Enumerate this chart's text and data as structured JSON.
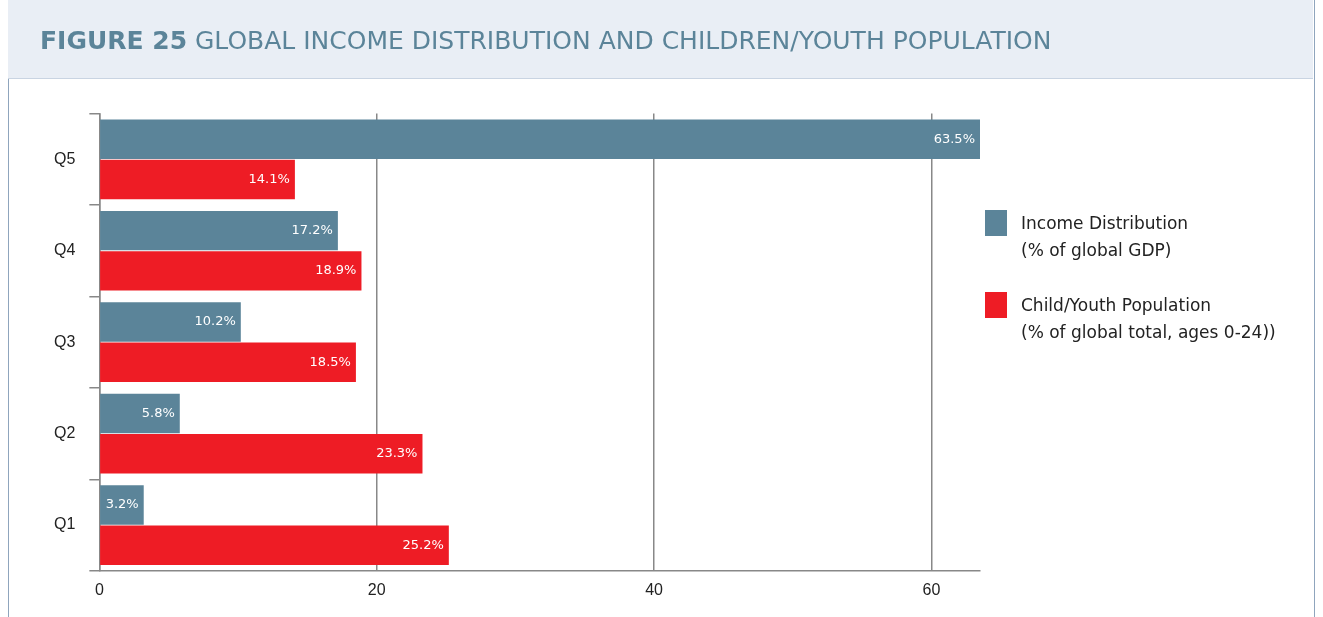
{
  "chart_data": {
    "type": "bar",
    "orientation": "horizontal",
    "title": "FIGURE 25 GLOBAL INCOME DISTRIBUTION AND CHILDREN/YOUTH POPULATION",
    "categories": [
      "Q5",
      "Q4",
      "Q3",
      "Q2",
      "Q1"
    ],
    "series": [
      {
        "name": "Income Distribution (% of global GDP)",
        "color": "#5b8499",
        "values": [
          63.5,
          17.2,
          10.2,
          5.8,
          3.2
        ],
        "value_labels": [
          "63.5%",
          "17.2%",
          "10.2%",
          "5.8%",
          "3.2%"
        ]
      },
      {
        "name": "Child/Youth Population (% of global total, ages 0-24))",
        "color": "#ee1c25",
        "values": [
          14.1,
          18.9,
          18.5,
          23.3,
          25.2
        ],
        "value_labels": [
          "14.1%",
          "18.9%",
          "18.5%",
          "23.3%",
          "25.2%"
        ]
      }
    ],
    "xlim": [
      0,
      63.5
    ],
    "xticks": [
      0,
      20,
      40,
      60
    ],
    "grid": "x",
    "legend": "right"
  }
}
